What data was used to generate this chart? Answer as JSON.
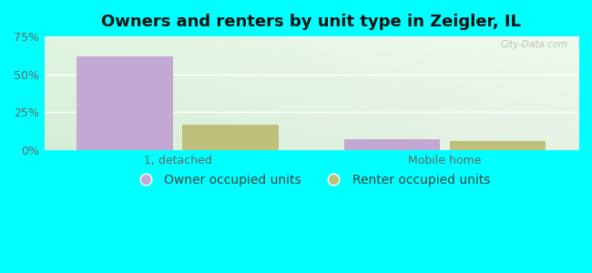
{
  "title": "Owners and renters by unit type in Zeigler, IL",
  "categories": [
    "1, detached",
    "Mobile home"
  ],
  "owner_values": [
    62,
    7
  ],
  "renter_values": [
    17,
    6
  ],
  "owner_color": "#c4a8d4",
  "renter_color": "#c0bf7a",
  "ylim": [
    0,
    75
  ],
  "yticks": [
    0,
    25,
    50,
    75
  ],
  "yticklabels": [
    "0%",
    "25%",
    "50%",
    "75%"
  ],
  "background_outer": "#00ffff",
  "title_fontsize": 13,
  "tick_fontsize": 9,
  "legend_fontsize": 10,
  "watermark": "City-Data.com",
  "bar_width": 0.18,
  "group_centers": [
    0.25,
    0.75
  ],
  "xlim": [
    0.0,
    1.0
  ],
  "bg_color_tl": "#d8eed8",
  "bg_color_tr": "#e8f8f0",
  "bg_color_bl": "#c8e8c8",
  "bg_color_br": "#d8f0e0"
}
